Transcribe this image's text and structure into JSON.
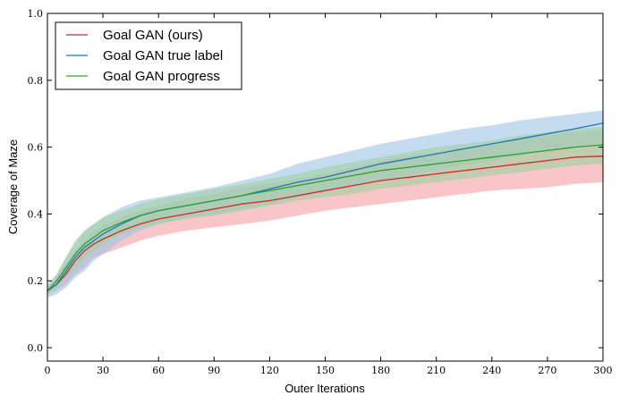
{
  "chart_data": {
    "type": "line",
    "xlabel": "Outer Iterations",
    "ylabel": "Coverage of Maze",
    "xlim": [
      0,
      300
    ],
    "ylim": [
      -0.04,
      1.0
    ],
    "xticks": [
      0,
      30,
      60,
      90,
      120,
      150,
      180,
      210,
      240,
      270,
      300
    ],
    "yticks": [
      0.0,
      0.2,
      0.4,
      0.6,
      0.8,
      1.0
    ],
    "xtick_labels": [
      "0",
      "30",
      "60",
      "90",
      "120",
      "150",
      "180",
      "210",
      "240",
      "270",
      "300"
    ],
    "ytick_labels": [
      "0.0",
      "0.2",
      "0.4",
      "0.6",
      "0.8",
      "1.0"
    ],
    "grid": false,
    "legend_position": "top-left",
    "x": [
      0,
      5,
      10,
      15,
      20,
      25,
      30,
      40,
      50,
      60,
      75,
      90,
      105,
      120,
      135,
      150,
      165,
      180,
      195,
      210,
      225,
      240,
      255,
      270,
      285,
      300
    ],
    "series": [
      {
        "name": "Goal GAN (ours)",
        "color": "#d62728",
        "band_color": "#f4a0a5",
        "values": [
          0.17,
          0.19,
          0.22,
          0.26,
          0.29,
          0.31,
          0.325,
          0.35,
          0.37,
          0.385,
          0.4,
          0.415,
          0.43,
          0.44,
          0.455,
          0.47,
          0.485,
          0.5,
          0.51,
          0.52,
          0.53,
          0.54,
          0.55,
          0.56,
          0.57,
          0.573
        ],
        "lower": [
          0.16,
          0.17,
          0.19,
          0.22,
          0.24,
          0.27,
          0.28,
          0.3,
          0.32,
          0.335,
          0.35,
          0.36,
          0.37,
          0.38,
          0.395,
          0.41,
          0.42,
          0.43,
          0.44,
          0.45,
          0.46,
          0.47,
          0.475,
          0.48,
          0.49,
          0.495
        ],
        "upper": [
          0.18,
          0.21,
          0.25,
          0.29,
          0.32,
          0.35,
          0.365,
          0.39,
          0.41,
          0.425,
          0.445,
          0.46,
          0.48,
          0.49,
          0.505,
          0.52,
          0.54,
          0.56,
          0.575,
          0.585,
          0.6,
          0.61,
          0.625,
          0.635,
          0.645,
          0.65
        ]
      },
      {
        "name": "Goal GAN true label",
        "color": "#1f77b4",
        "band_color": "#9ec5e6",
        "values": [
          0.17,
          0.19,
          0.23,
          0.27,
          0.3,
          0.32,
          0.34,
          0.37,
          0.395,
          0.41,
          0.425,
          0.44,
          0.455,
          0.475,
          0.495,
          0.51,
          0.53,
          0.55,
          0.565,
          0.58,
          0.595,
          0.61,
          0.625,
          0.64,
          0.655,
          0.672
        ],
        "lower": [
          0.15,
          0.16,
          0.18,
          0.21,
          0.23,
          0.26,
          0.28,
          0.32,
          0.35,
          0.37,
          0.39,
          0.4,
          0.415,
          0.43,
          0.45,
          0.465,
          0.48,
          0.5,
          0.515,
          0.53,
          0.545,
          0.56,
          0.575,
          0.59,
          0.6,
          0.615
        ],
        "upper": [
          0.19,
          0.22,
          0.27,
          0.31,
          0.35,
          0.37,
          0.39,
          0.42,
          0.44,
          0.45,
          0.465,
          0.48,
          0.5,
          0.52,
          0.55,
          0.57,
          0.59,
          0.61,
          0.625,
          0.64,
          0.655,
          0.665,
          0.68,
          0.69,
          0.7,
          0.71
        ]
      },
      {
        "name": "Goal GAN progress",
        "color": "#2ca02c",
        "band_color": "#9fd19f",
        "values": [
          0.17,
          0.2,
          0.24,
          0.28,
          0.31,
          0.33,
          0.35,
          0.375,
          0.395,
          0.41,
          0.425,
          0.44,
          0.455,
          0.47,
          0.485,
          0.5,
          0.515,
          0.53,
          0.54,
          0.55,
          0.56,
          0.57,
          0.58,
          0.59,
          0.6,
          0.607
        ],
        "lower": [
          0.16,
          0.18,
          0.21,
          0.24,
          0.27,
          0.29,
          0.31,
          0.34,
          0.36,
          0.37,
          0.385,
          0.395,
          0.41,
          0.425,
          0.44,
          0.45,
          0.46,
          0.475,
          0.485,
          0.495,
          0.505,
          0.515,
          0.525,
          0.535,
          0.545,
          0.55
        ],
        "upper": [
          0.18,
          0.22,
          0.27,
          0.32,
          0.35,
          0.37,
          0.39,
          0.41,
          0.43,
          0.445,
          0.46,
          0.475,
          0.49,
          0.505,
          0.52,
          0.54,
          0.555,
          0.57,
          0.585,
          0.6,
          0.61,
          0.62,
          0.635,
          0.645,
          0.655,
          0.66
        ]
      }
    ]
  }
}
